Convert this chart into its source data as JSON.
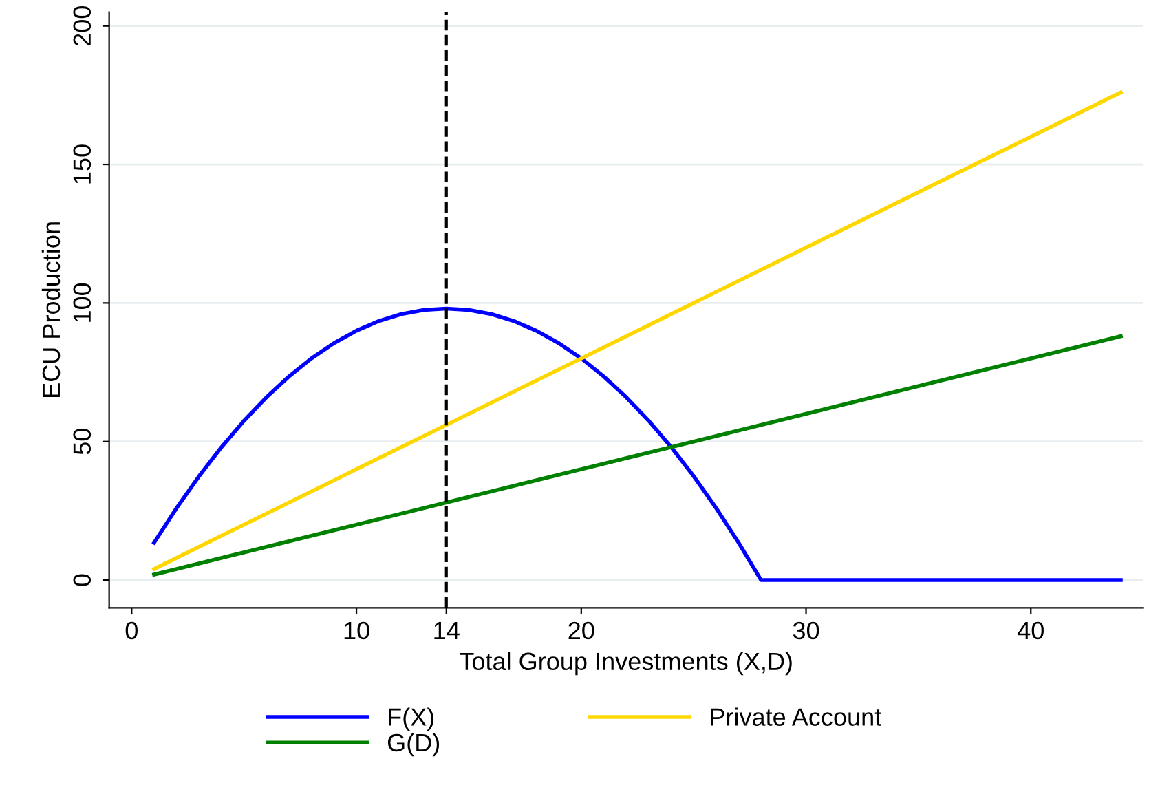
{
  "chart_data": {
    "type": "line",
    "xlabel": "Total Group Investments (X,D)",
    "ylabel": "ECU Production",
    "series": [
      {
        "name": "F(X)",
        "color": "#0000ff",
        "x": [
          1,
          2,
          3,
          4,
          5,
          6,
          7,
          8,
          9,
          10,
          11,
          12,
          13,
          14,
          15,
          16,
          17,
          18,
          19,
          20,
          21,
          22,
          23,
          24,
          25,
          26,
          27,
          28,
          44
        ],
        "values": [
          13.5,
          26,
          37.5,
          48,
          57.5,
          66,
          73.5,
          80,
          85.5,
          90,
          93.5,
          96,
          97.5,
          98,
          97.5,
          96,
          93.5,
          90,
          85.5,
          80,
          73.5,
          66,
          57.5,
          48,
          37.5,
          26,
          13.5,
          0,
          0
        ]
      },
      {
        "name": "G(D)",
        "color": "#008000",
        "x": [
          1,
          44
        ],
        "values": [
          2,
          88
        ]
      },
      {
        "name": "Private Account",
        "color": "#ffd700",
        "x": [
          1,
          44
        ],
        "values": [
          4,
          176
        ]
      }
    ],
    "xlim": [
      -1,
      45
    ],
    "ylim": [
      -10,
      205
    ],
    "xticks": [
      0,
      10,
      14,
      20,
      30,
      40
    ],
    "yticks": [
      0,
      50,
      100,
      150,
      200
    ],
    "ref_lines": [
      {
        "axis": "x",
        "value": 14,
        "color": "#000000",
        "line_style": "dashed"
      }
    ],
    "grid": "y",
    "legend": "bottom",
    "marker": "none",
    "line_style": "solid"
  }
}
